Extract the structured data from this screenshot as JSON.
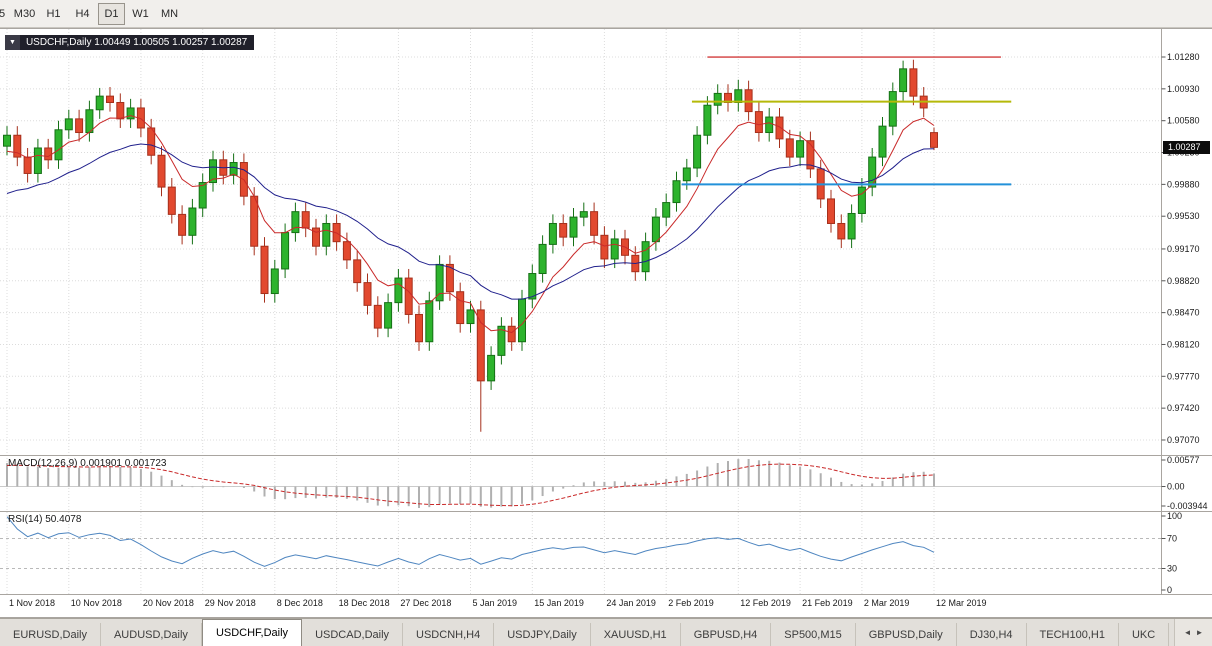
{
  "toolbar": {
    "timeframes": [
      "5",
      "M30",
      "H1",
      "H4",
      "D1",
      "W1",
      "MN"
    ],
    "active": "D1"
  },
  "chart": {
    "header": "USDCHF,Daily 1.00449 1.00505 1.00257 1.00287",
    "collapse_icon": "▼",
    "price_tag": "1.00287"
  },
  "chart_data": {
    "type": "candlestick",
    "title": "USDCHF,Daily",
    "ohlc_current": {
      "open": "1.00449",
      "high": "1.00505",
      "low": "1.00257",
      "close": "1.00287"
    },
    "y_ticks": [
      {
        "label": "1.01280",
        "value": 1.0128
      },
      {
        "label": "1.00930",
        "value": 1.0093
      },
      {
        "label": "1.00580",
        "value": 1.0058
      },
      {
        "label": "1.00230",
        "value": 1.0023
      },
      {
        "label": "0.99880",
        "value": 0.9988
      },
      {
        "label": "0.99530",
        "value": 0.9953
      },
      {
        "label": "0.99170",
        "value": 0.9917
      },
      {
        "label": "0.98820",
        "value": 0.9882
      },
      {
        "label": "0.98470",
        "value": 0.9847
      },
      {
        "label": "0.98120",
        "value": 0.9812
      },
      {
        "label": "0.97770",
        "value": 0.9777
      },
      {
        "label": "0.97420",
        "value": 0.9742
      },
      {
        "label": "0.97070",
        "value": 0.9707
      }
    ],
    "x_labels": [
      {
        "text": "1 Nov 2018",
        "index": 0
      },
      {
        "text": "10 Nov 2018",
        "index": 6
      },
      {
        "text": "20 Nov 2018",
        "index": 13
      },
      {
        "text": "29 Nov 2018",
        "index": 19
      },
      {
        "text": "8 Dec 2018",
        "index": 26
      },
      {
        "text": "18 Dec 2018",
        "index": 32
      },
      {
        "text": "27 Dec 2018",
        "index": 38
      },
      {
        "text": "5 Jan 2019",
        "index": 45
      },
      {
        "text": "15 Jan 2019",
        "index": 51
      },
      {
        "text": "24 Jan 2019",
        "index": 58
      },
      {
        "text": "2 Feb 2019",
        "index": 64
      },
      {
        "text": "12 Feb 2019",
        "index": 71
      },
      {
        "text": "21 Feb 2019",
        "index": 77
      },
      {
        "text": "2 Mar 2019",
        "index": 83
      },
      {
        "text": "12 Mar 2019",
        "index": 90
      }
    ],
    "candles": {
      "first_open": 1.003,
      "default_wick": 0.001,
      "prehistory": [
        0.986,
        0.9872,
        0.9885,
        0.9898,
        0.991,
        0.9922,
        0.9935,
        0.9948,
        0.996,
        0.9972,
        0.9982,
        0.999,
        0.9998,
        1.0005,
        1.0012,
        1.0018,
        1.0022,
        1.0026,
        1.003,
        1.0035
      ],
      "closes": [
        1.0042,
        1.0018,
        1.0,
        1.0028,
        1.0015,
        1.0048,
        1.006,
        1.0045,
        1.007,
        1.0085,
        1.0078,
        1.006,
        1.0072,
        1.005,
        1.002,
        0.9985,
        0.9955,
        0.9932,
        0.9962,
        0.999,
        1.0015,
        0.9998,
        1.0012,
        0.9975,
        0.992,
        0.9868,
        0.9895,
        0.9935,
        0.9958,
        0.994,
        0.992,
        0.9945,
        0.9925,
        0.9905,
        0.988,
        0.9855,
        0.983,
        0.9858,
        0.9885,
        0.9845,
        0.9815,
        0.986,
        0.99,
        0.987,
        0.9835,
        0.985,
        0.9772,
        0.98,
        0.9832,
        0.9815,
        0.9862,
        0.989,
        0.9922,
        0.9945,
        0.993,
        0.9952,
        0.9958,
        0.9932,
        0.9906,
        0.9928,
        0.991,
        0.9892,
        0.9925,
        0.9952,
        0.9968,
        0.9992,
        1.0006,
        1.0042,
        1.0075,
        1.0088,
        1.0078,
        1.0092,
        1.0068,
        1.0045,
        1.0062,
        1.0038,
        1.0018,
        1.0036,
        1.0005,
        0.9972,
        0.9945,
        0.9928,
        0.9956,
        0.9985,
        1.0018,
        1.0052,
        1.009,
        1.0115,
        1.0085,
        1.0072,
        1.00287
      ],
      "overrides": {
        "9": {
          "high": 1.0094
        },
        "46": {
          "low": 0.9716
        },
        "69": {
          "high": 1.0098
        },
        "71": {
          "high": 1.0103
        },
        "81": {
          "low": 0.9918
        },
        "87": {
          "high": 1.0124
        },
        "90": {
          "open": 1.00449,
          "high": 1.00505,
          "low": 1.00257,
          "close": 1.00287
        }
      }
    },
    "ma_fast": {
      "period": 7
    },
    "ma_slow": {
      "period": 21
    },
    "hlines": [
      {
        "name": "resistance-line-red",
        "price": 1.0128,
        "color": "#d23b3b",
        "width": 1.4,
        "from_index": 68,
        "to_index": 96.5
      },
      {
        "name": "resistance-line-yellow",
        "price": 1.0079,
        "color": "#b5b909",
        "width": 2,
        "from_index": 66.5,
        "to_index": 97.5
      },
      {
        "name": "support-line-blue",
        "price": 0.9988,
        "color": "#2391d9",
        "width": 2,
        "from_index": 65.5,
        "to_index": 97.5
      }
    ],
    "colors": {
      "up": "#2db32d",
      "up_border": "#157015",
      "down": "#e2492f",
      "down_border": "#a5301c",
      "ma_fast": "#c92a2a",
      "ma_slow": "#20208c",
      "macd_hist": "#b0b0b0",
      "macd_signal": "#c92a2a",
      "rsi": "#4f86c0",
      "grid": "#dcdcdc"
    },
    "indicators": {
      "macd": {
        "label": "MACD(12,26,9) 0.001901 0.001723",
        "ticks": [
          "0.00577",
          "0.00",
          "-0.003944"
        ]
      },
      "rsi": {
        "label": "RSI(14) 50.4078",
        "period": 14,
        "levels": [
          70,
          30
        ],
        "ticks": [
          "100",
          "70",
          "30",
          "0"
        ]
      }
    }
  },
  "tabs": {
    "items": [
      "EURUSD,Daily",
      "AUDUSD,Daily",
      "USDCHF,Daily",
      "USDCAD,Daily",
      "USDCNH,H4",
      "USDJPY,Daily",
      "XAUUSD,H1",
      "GBPUSD,H4",
      "SP500,M15",
      "GBPUSD,Daily",
      "DJ30,H4",
      "TECH100,H1",
      "UKC"
    ],
    "active": "USDCHF,Daily",
    "left_icon": "◄",
    "right_icon": "►"
  }
}
